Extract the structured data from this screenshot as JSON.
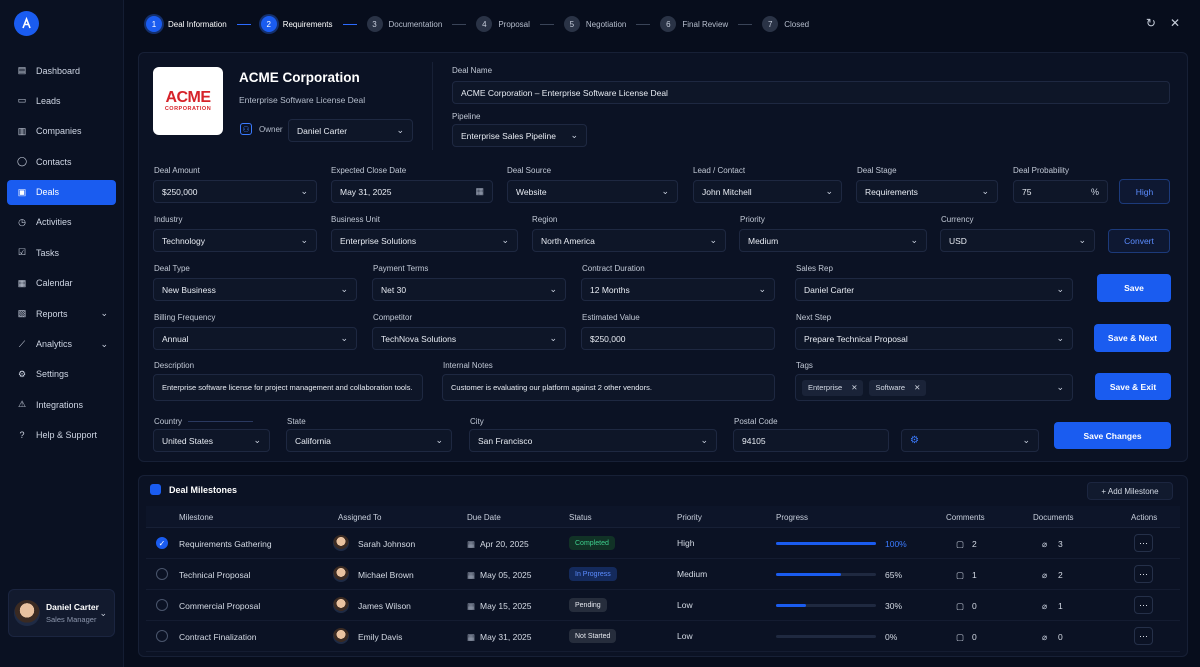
{
  "accent": "#1a5cf0",
  "steps": [
    {
      "num": "1",
      "label": "Deal Information"
    },
    {
      "num": "2",
      "label": "Requirements"
    },
    {
      "num": "3",
      "label": "Documentation"
    },
    {
      "num": "4",
      "label": "Proposal"
    },
    {
      "num": "5",
      "label": "Negotiation"
    },
    {
      "num": "6",
      "label": "Final Review"
    },
    {
      "num": "7",
      "label": "Closed"
    }
  ],
  "sidebar": {
    "items": [
      {
        "label": "Dashboard",
        "icon": "dashboard-icon"
      },
      {
        "label": "Leads",
        "icon": "leads-icon"
      },
      {
        "label": "Companies",
        "icon": "building-icon"
      },
      {
        "label": "Contacts",
        "icon": "user-icon"
      },
      {
        "label": "Deals",
        "icon": "deals-icon"
      },
      {
        "label": "Activities",
        "icon": "clock-icon"
      },
      {
        "label": "Tasks",
        "icon": "checklist-icon"
      },
      {
        "label": "Calendar",
        "icon": "calendar-icon"
      },
      {
        "label": "Reports",
        "icon": "report-icon"
      },
      {
        "label": "Analytics",
        "icon": "analytics-icon"
      },
      {
        "label": "Settings",
        "icon": "gear-icon"
      },
      {
        "label": "Integrations",
        "icon": "integration-icon"
      },
      {
        "label": "Help & Support",
        "icon": "help-icon"
      }
    ]
  },
  "profile": {
    "name": "Daniel Carter",
    "role": "Sales Manager"
  },
  "company": {
    "logo_main": "ACME",
    "logo_sub": "CORPORATION",
    "name": "ACME Corporation",
    "subtitle": "Enterprise Software License Deal",
    "owner_label": "Owner",
    "owner_value": "Daniel Carter"
  },
  "deal": {
    "name_label": "Deal Name",
    "name_value": "ACME Corporation – Enterprise Software License Deal",
    "pipeline_label": "Pipeline",
    "pipeline_value": "Enterprise Sales Pipeline"
  },
  "form": {
    "amount_label": "Deal Amount",
    "amount_value": "$250,000",
    "close_label": "Expected Close Date",
    "close_value": "May 31, 2025",
    "source_label": "Deal Source",
    "source_value": "Website",
    "lead_label": "Lead / Contact",
    "lead_value": "John Mitchell",
    "stage_label": "Deal Stage",
    "stage_value": "Requirements",
    "prob_label": "Deal Probability",
    "prob_value": "75",
    "prob_unit": "%",
    "prob_badge": "High",
    "industry_label": "Industry",
    "industry_value": "Technology",
    "bu_label": "Business Unit",
    "bu_value": "Enterprise Solutions",
    "region_label": "Region",
    "region_value": "North America",
    "priority_label": "Priority",
    "priority_value": "Medium",
    "currency_label": "Currency",
    "currency_value": "USD",
    "convert_label": "Convert",
    "type_label": "Deal Type",
    "type_value": "New Business",
    "terms_label": "Payment Terms",
    "terms_value": "Net 30",
    "duration_label": "Contract Duration",
    "duration_value": "12 Months",
    "rep_label": "Sales Rep",
    "rep_value": "Daniel Carter",
    "billing_label": "Billing Frequency",
    "billing_value": "Annual",
    "competitor_label": "Competitor",
    "competitor_value": "TechNova Solutions",
    "est_label": "Estimated Value",
    "est_value": "$250,000",
    "next_label": "Next Step",
    "next_value": "Prepare Technical Proposal",
    "desc_label": "Description",
    "desc_value": "Enterprise software license for project management and collaboration tools.",
    "notes_label": "Internal Notes",
    "notes_value": "Customer is evaluating our platform against 2 other vendors.",
    "tags_label": "Tags",
    "tags": [
      "Enterprise",
      "Software"
    ],
    "country_label": "Country",
    "country_value": "United States",
    "state_label": "State",
    "state_value": "California",
    "city_label": "City",
    "city_value": "San Francisco",
    "postal_label": "Postal Code",
    "postal_value": "94105"
  },
  "buttons": {
    "save": "Save",
    "save_next": "Save & Next",
    "save_exit": "Save & Exit",
    "save_changes": "Save Changes"
  },
  "milestones": {
    "title": "Deal Milestones",
    "add_label": "+ Add Milestone",
    "headers": [
      "Milestone",
      "Assigned To",
      "Due Date",
      "Status",
      "Priority",
      "Progress",
      "Comments",
      "Documents",
      "Actions"
    ],
    "rows": [
      {
        "done": true,
        "name": "Requirements Gathering",
        "assignee": "Sarah Johnson",
        "due": "Apr 20, 2025",
        "status": "Completed",
        "status_color": "#3ecf8e",
        "status_bg": "#113226",
        "priority": "High",
        "progress": 100,
        "progress_label": "100%",
        "comments": "2",
        "docs": "3"
      },
      {
        "done": false,
        "name": "Technical Proposal",
        "assignee": "Michael Brown",
        "due": "May 05, 2025",
        "status": "In Progress",
        "status_color": "#5b8cff",
        "status_bg": "#142a5c",
        "priority": "Medium",
        "progress": 65,
        "progress_label": "65%",
        "comments": "1",
        "docs": "2"
      },
      {
        "done": false,
        "name": "Commercial Proposal",
        "assignee": "James Wilson",
        "due": "May 15, 2025",
        "status": "Pending",
        "status_color": "#e6e9ef",
        "status_bg": "#262d3c",
        "priority": "Low",
        "progress": 30,
        "progress_label": "30%",
        "comments": "0",
        "docs": "1"
      },
      {
        "done": false,
        "name": "Contract Finalization",
        "assignee": "Emily Davis",
        "due": "May 31, 2025",
        "status": "Not Started",
        "status_color": "#e6e9ef",
        "status_bg": "#262d3c",
        "priority": "Low",
        "progress": 0,
        "progress_label": "0%",
        "comments": "0",
        "docs": "0"
      }
    ]
  }
}
